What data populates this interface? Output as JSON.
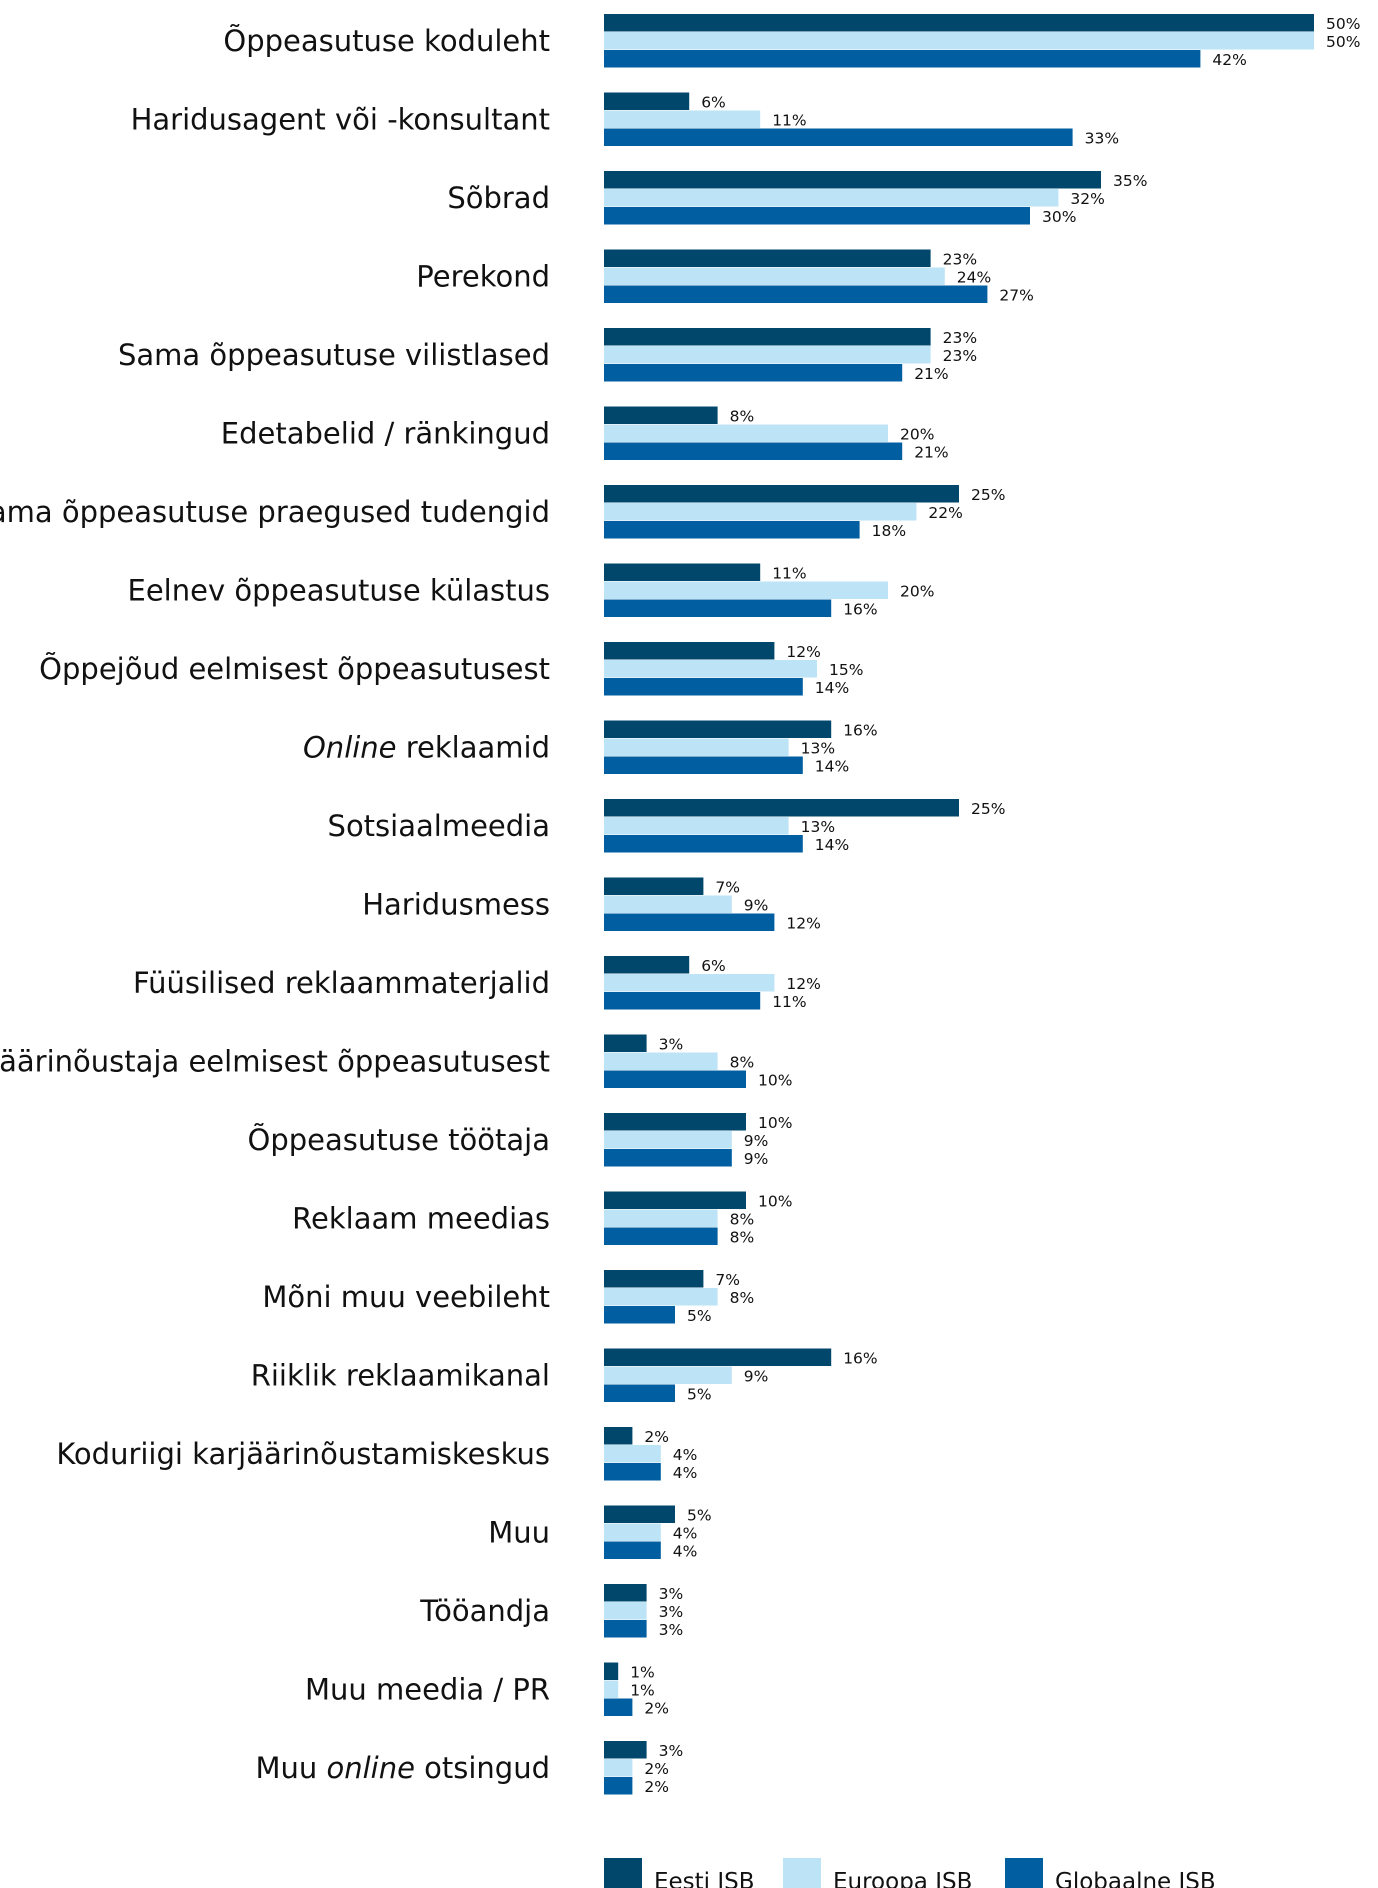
{
  "chart_data": {
    "type": "bar",
    "orientation": "horizontal",
    "unit": "%",
    "categories": [
      [
        "Õppeasutuse koduleht"
      ],
      [
        "Haridusagent või -konsultant"
      ],
      [
        "Sõbrad"
      ],
      [
        "Perekond"
      ],
      [
        "Sama õppeasutuse vilistlased"
      ],
      [
        "Edetabelid / ränkingud"
      ],
      [
        "Sama õppeasutuse praegused tudengid"
      ],
      [
        "Eelnev õppeasutuse külastus"
      ],
      [
        "Õppejõud eelmisest õppeasutusest"
      ],
      [
        {
          "text": "Online",
          "italic": true
        },
        {
          "text": " reklaamid"
        }
      ],
      [
        "Sotsiaalmeedia"
      ],
      [
        "Haridusmess"
      ],
      [
        "Füüsilised reklaammaterjalid"
      ],
      [
        "Karjäärinõustaja eelmisest õppeasutusest"
      ],
      [
        "Õppeasutuse töötaja"
      ],
      [
        "Reklaam meedias"
      ],
      [
        "Mõni muu veebileht"
      ],
      [
        "Riiklik reklaamikanal"
      ],
      [
        "Koduriigi karjäärinõustamiskeskus"
      ],
      [
        "Muu"
      ],
      [
        "Tööandja"
      ],
      [
        "Muu meedia / PR"
      ],
      [
        {
          "text": "Muu "
        },
        {
          "text": "online",
          "italic": true
        },
        {
          "text": " otsingud"
        }
      ]
    ],
    "series": [
      {
        "name": "Eesti ISB",
        "color": "#00476b",
        "values": [
          50,
          6,
          35,
          23,
          23,
          8,
          25,
          11,
          12,
          16,
          25,
          7,
          6,
          3,
          10,
          10,
          7,
          16,
          2,
          5,
          3,
          1,
          3
        ]
      },
      {
        "name": "Euroopa ISB",
        "color": "#bde3f7",
        "values": [
          50,
          11,
          32,
          24,
          23,
          20,
          22,
          20,
          15,
          13,
          13,
          9,
          12,
          8,
          9,
          8,
          8,
          9,
          4,
          4,
          3,
          1,
          2
        ]
      },
      {
        "name": "Globaalne ISB",
        "color": "#005ea1",
        "values": [
          42,
          33,
          30,
          27,
          21,
          21,
          18,
          16,
          14,
          14,
          14,
          12,
          11,
          10,
          9,
          8,
          5,
          5,
          4,
          4,
          3,
          2,
          2
        ]
      }
    ],
    "xlim": [
      0,
      50
    ],
    "grid": false,
    "legend_position": "bottom"
  }
}
